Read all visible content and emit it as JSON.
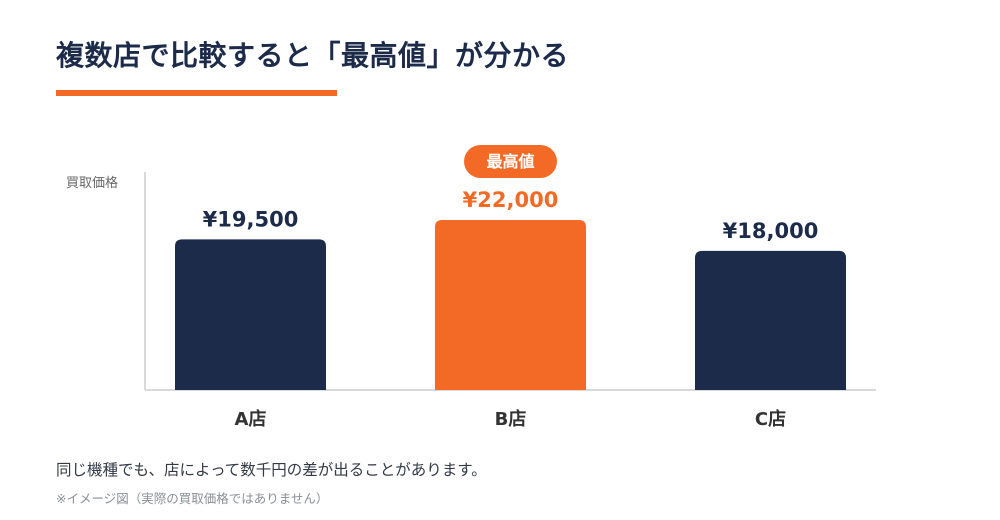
{
  "header": {
    "title": "複数店で比較すると「最高値」が分かる"
  },
  "chart_data": {
    "type": "bar",
    "ylabel": "買取価格",
    "categories": [
      "A店",
      "B店",
      "C店"
    ],
    "values": [
      19500,
      22000,
      18000
    ],
    "value_labels": [
      "¥19,500",
      "¥22,000",
      "¥18,000"
    ],
    "highlight_index": 1,
    "highlight_badge": "最高値",
    "ylim": [
      0,
      22000
    ],
    "grid": false,
    "colors": {
      "default_bar": "#1d2b4a",
      "highlight_bar": "#f26a25",
      "axis": "#d9d9d9",
      "category_label": "#333333",
      "ylabel": "#666666"
    }
  },
  "footer": {
    "caption": "同じ機種でも、店によって数千円の差が出ることがあります。",
    "note": "※イメージ図（実際の買取価格ではありません）"
  }
}
